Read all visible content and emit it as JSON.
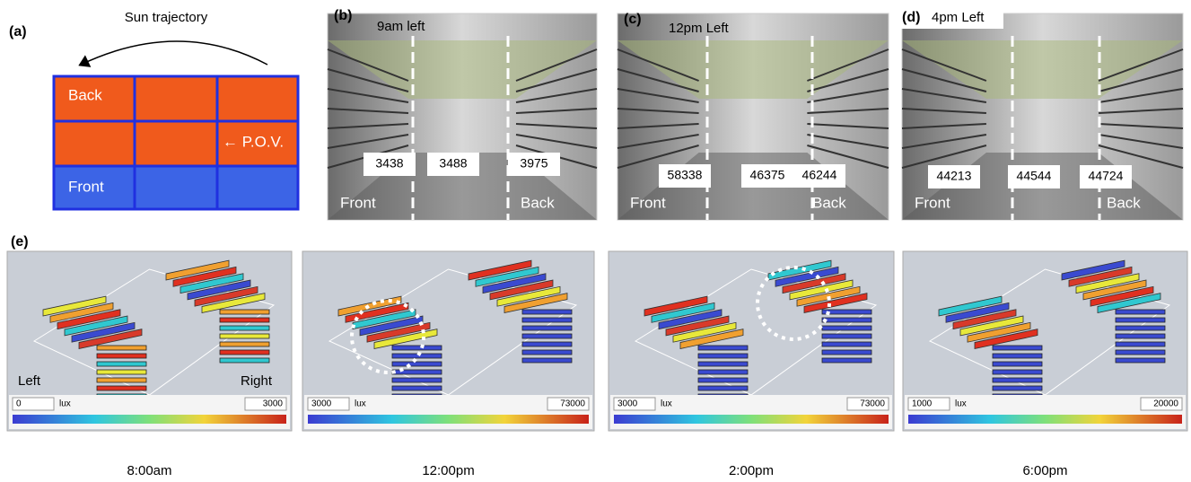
{
  "panel_a": {
    "label": "(a)",
    "title": "Sun trajectory",
    "back": "Back",
    "pov": "← P.O.V.",
    "front": "Front"
  },
  "panel_b": {
    "label": "(b)",
    "title": "9am left",
    "readings": [
      "3438",
      "3488",
      "3975"
    ],
    "front": "Front",
    "back": "Back"
  },
  "panel_c": {
    "label": "(c)",
    "title": "12pm Left",
    "readings": [
      "58338",
      "46375",
      "46244"
    ],
    "front": "Front",
    "back": "Back"
  },
  "panel_d": {
    "label": "(d)",
    "title": "4pm Left",
    "readings": [
      "44213",
      "44544",
      "44724"
    ],
    "front": "Front",
    "back": "Back"
  },
  "panel_e": {
    "label": "(e)",
    "left": "Left",
    "right": "Right",
    "views": [
      {
        "min": "0",
        "unit": "lux",
        "max": "3000",
        "time": "8:00am"
      },
      {
        "min": "3000",
        "unit": "lux",
        "max": "73000",
        "time": "12:00pm"
      },
      {
        "min": "3000",
        "unit": "lux",
        "max": "73000",
        "time": "2:00pm"
      },
      {
        "min": "1000",
        "unit": "lux",
        "max": "20000",
        "time": "6:00pm"
      }
    ]
  }
}
